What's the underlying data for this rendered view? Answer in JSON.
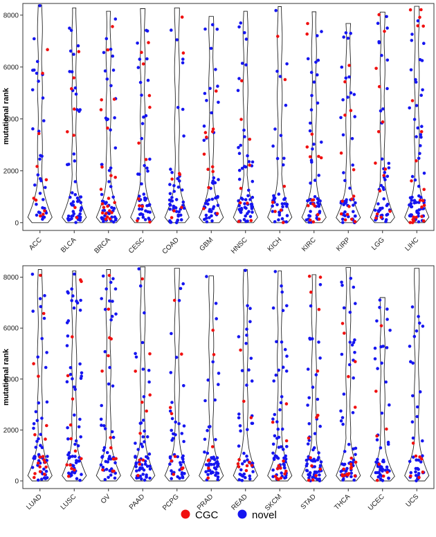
{
  "colors": {
    "CGC": "#f01010",
    "novel": "#1515f0",
    "frame": "#333333",
    "violin": "#222222"
  },
  "legend": [
    {
      "label": "CGC",
      "color": "#f01010"
    },
    {
      "label": "novel",
      "color": "#1515f0"
    }
  ],
  "chart_data": [
    {
      "type": "violin-jitter",
      "ylabel": "mutational rank",
      "ylim": [
        -300,
        8450
      ],
      "yticks": [
        0,
        2000,
        4000,
        6000,
        8000
      ],
      "categories": [
        "ACC",
        "BLCA",
        "BRCA",
        "CESC",
        "COAD",
        "GBM",
        "HNSC",
        "KICH",
        "KIRC",
        "KIRP",
        "LGG",
        "LIHC"
      ],
      "max_rank": [
        8400,
        8280,
        8150,
        8250,
        8280,
        7950,
        8150,
        8330,
        8130,
        7680,
        8120,
        8340
      ],
      "cgc_counts": [
        10,
        8,
        22,
        12,
        8,
        12,
        9,
        7,
        16,
        15,
        14,
        22
      ],
      "novel_counts": [
        34,
        50,
        50,
        45,
        47,
        48,
        58,
        40,
        48,
        45,
        46,
        62
      ]
    },
    {
      "type": "violin-jitter",
      "ylabel": "mutational rank",
      "ylim": [
        -300,
        8450
      ],
      "yticks": [
        0,
        2000,
        4000,
        6000,
        8000
      ],
      "categories": [
        "LUAD",
        "LUSC",
        "OV",
        "PAAD",
        "PCPG",
        "PRAD",
        "READ",
        "SKCM",
        "STAD",
        "THCA",
        "UCEC",
        "UCS"
      ],
      "max_rank": [
        8300,
        8250,
        8300,
        8400,
        8350,
        8050,
        8300,
        8250,
        8100,
        8380,
        7200,
        8350
      ],
      "cgc_counts": [
        18,
        14,
        13,
        11,
        9,
        7,
        10,
        13,
        14,
        18,
        8,
        7
      ],
      "novel_counts": [
        52,
        60,
        50,
        55,
        45,
        48,
        44,
        60,
        60,
        56,
        52,
        36
      ]
    }
  ]
}
